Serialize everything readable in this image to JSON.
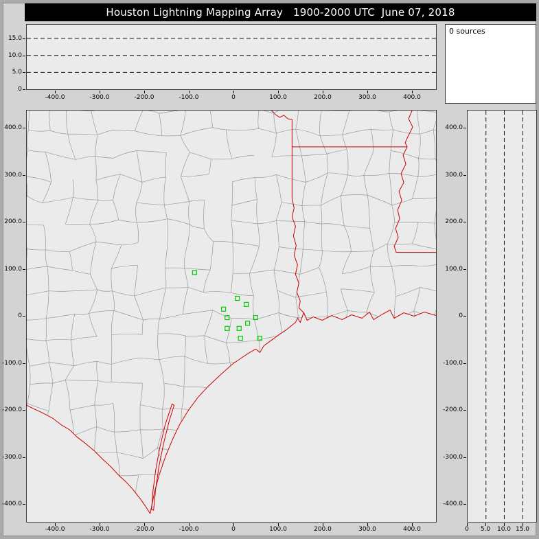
{
  "window": {
    "title": "Houston Lightning Mapping Array   1900-2000 UTC  June 07, 2018"
  },
  "sources_panel": {
    "label": "0 sources",
    "count": 0
  },
  "colors": {
    "titlebar_bg": "#000000",
    "titlebar_fg": "#ffffff",
    "panel_bg": "#ebebeb",
    "county_line": "#999999",
    "state_line": "#cc0000",
    "station": "#00cc00",
    "dashed_line": "#111111"
  },
  "chart_data": [
    {
      "type": "scatter",
      "name": "altitude-vs-east-west",
      "title": "",
      "xlabel": "",
      "ylabel": "",
      "points": [],
      "xlim": [
        -465,
        455
      ],
      "ylim": [
        0,
        19.3
      ],
      "x_ticks": {
        "values": [
          -400,
          -300,
          -200,
          -100,
          0,
          100,
          200,
          300,
          400
        ],
        "labels": [
          "-400.0",
          "-300.0",
          "-200.0",
          "-100.0",
          "0",
          "100.0",
          "200.0",
          "300.0",
          "400.0"
        ]
      },
      "y_ticks": {
        "values": [
          0,
          5,
          10,
          15
        ],
        "labels": [
          "0",
          "5.0",
          "10.0",
          "15.0"
        ]
      },
      "dashed_y_km": [
        5,
        10,
        15
      ],
      "grid": "dashed-horizontal"
    },
    {
      "type": "scatter",
      "name": "plan-view-map",
      "title": "",
      "xlabel": "",
      "ylabel": "",
      "points": [],
      "xlim": [
        -465,
        454
      ],
      "ylim": [
        -438,
        438
      ],
      "x_ticks": {
        "values": [
          -400,
          -300,
          -200,
          -100,
          0,
          100,
          200,
          300,
          400
        ],
        "labels": [
          "-400.0",
          "-300.0",
          "-200.0",
          "-100.0",
          "0",
          "100.0",
          "200.0",
          "300.0",
          "400.0"
        ]
      },
      "y_ticks": {
        "values": [
          400,
          300,
          200,
          100,
          0,
          -100,
          -200,
          -300,
          -400
        ],
        "labels": [
          "400.0",
          "300.0",
          "200.0",
          "100.0",
          "0",
          "-100.0",
          "-200.0",
          "-300.0",
          "-400.0"
        ]
      },
      "stations_km": [
        [
          -88,
          93
        ],
        [
          8,
          38
        ],
        [
          28,
          25
        ],
        [
          -23,
          15
        ],
        [
          -15,
          -3
        ],
        [
          49,
          -3
        ],
        [
          31,
          -15
        ],
        [
          -15,
          -26
        ],
        [
          12,
          -26
        ],
        [
          15,
          -47
        ],
        [
          58,
          -47
        ]
      ],
      "map_features": [
        "county-borders-gray",
        "state-borders-red",
        "coastline-red",
        "rio-grande-red",
        "barrier-island-red"
      ]
    },
    {
      "type": "scatter",
      "name": "altitude-vs-north-south",
      "title": "",
      "xlabel": "",
      "ylabel": "",
      "points": [],
      "xlim": [
        0,
        18.7
      ],
      "ylim": [
        -438,
        438
      ],
      "x_ticks": {
        "values": [
          0,
          5,
          10,
          15
        ],
        "labels": [
          "0",
          "5.0",
          "10.0",
          "15.0"
        ]
      },
      "y_ticks": {
        "values": [
          400,
          300,
          200,
          100,
          0,
          -100,
          -200,
          -300,
          -400
        ],
        "labels": [
          "400.0",
          "300.0",
          "200.0",
          "100.0",
          "0",
          "-100.0",
          "-200.0",
          "-300.0",
          "-400.0"
        ]
      },
      "dashed_x_km": [
        5,
        10,
        15
      ],
      "grid": "dashed-vertical"
    }
  ]
}
